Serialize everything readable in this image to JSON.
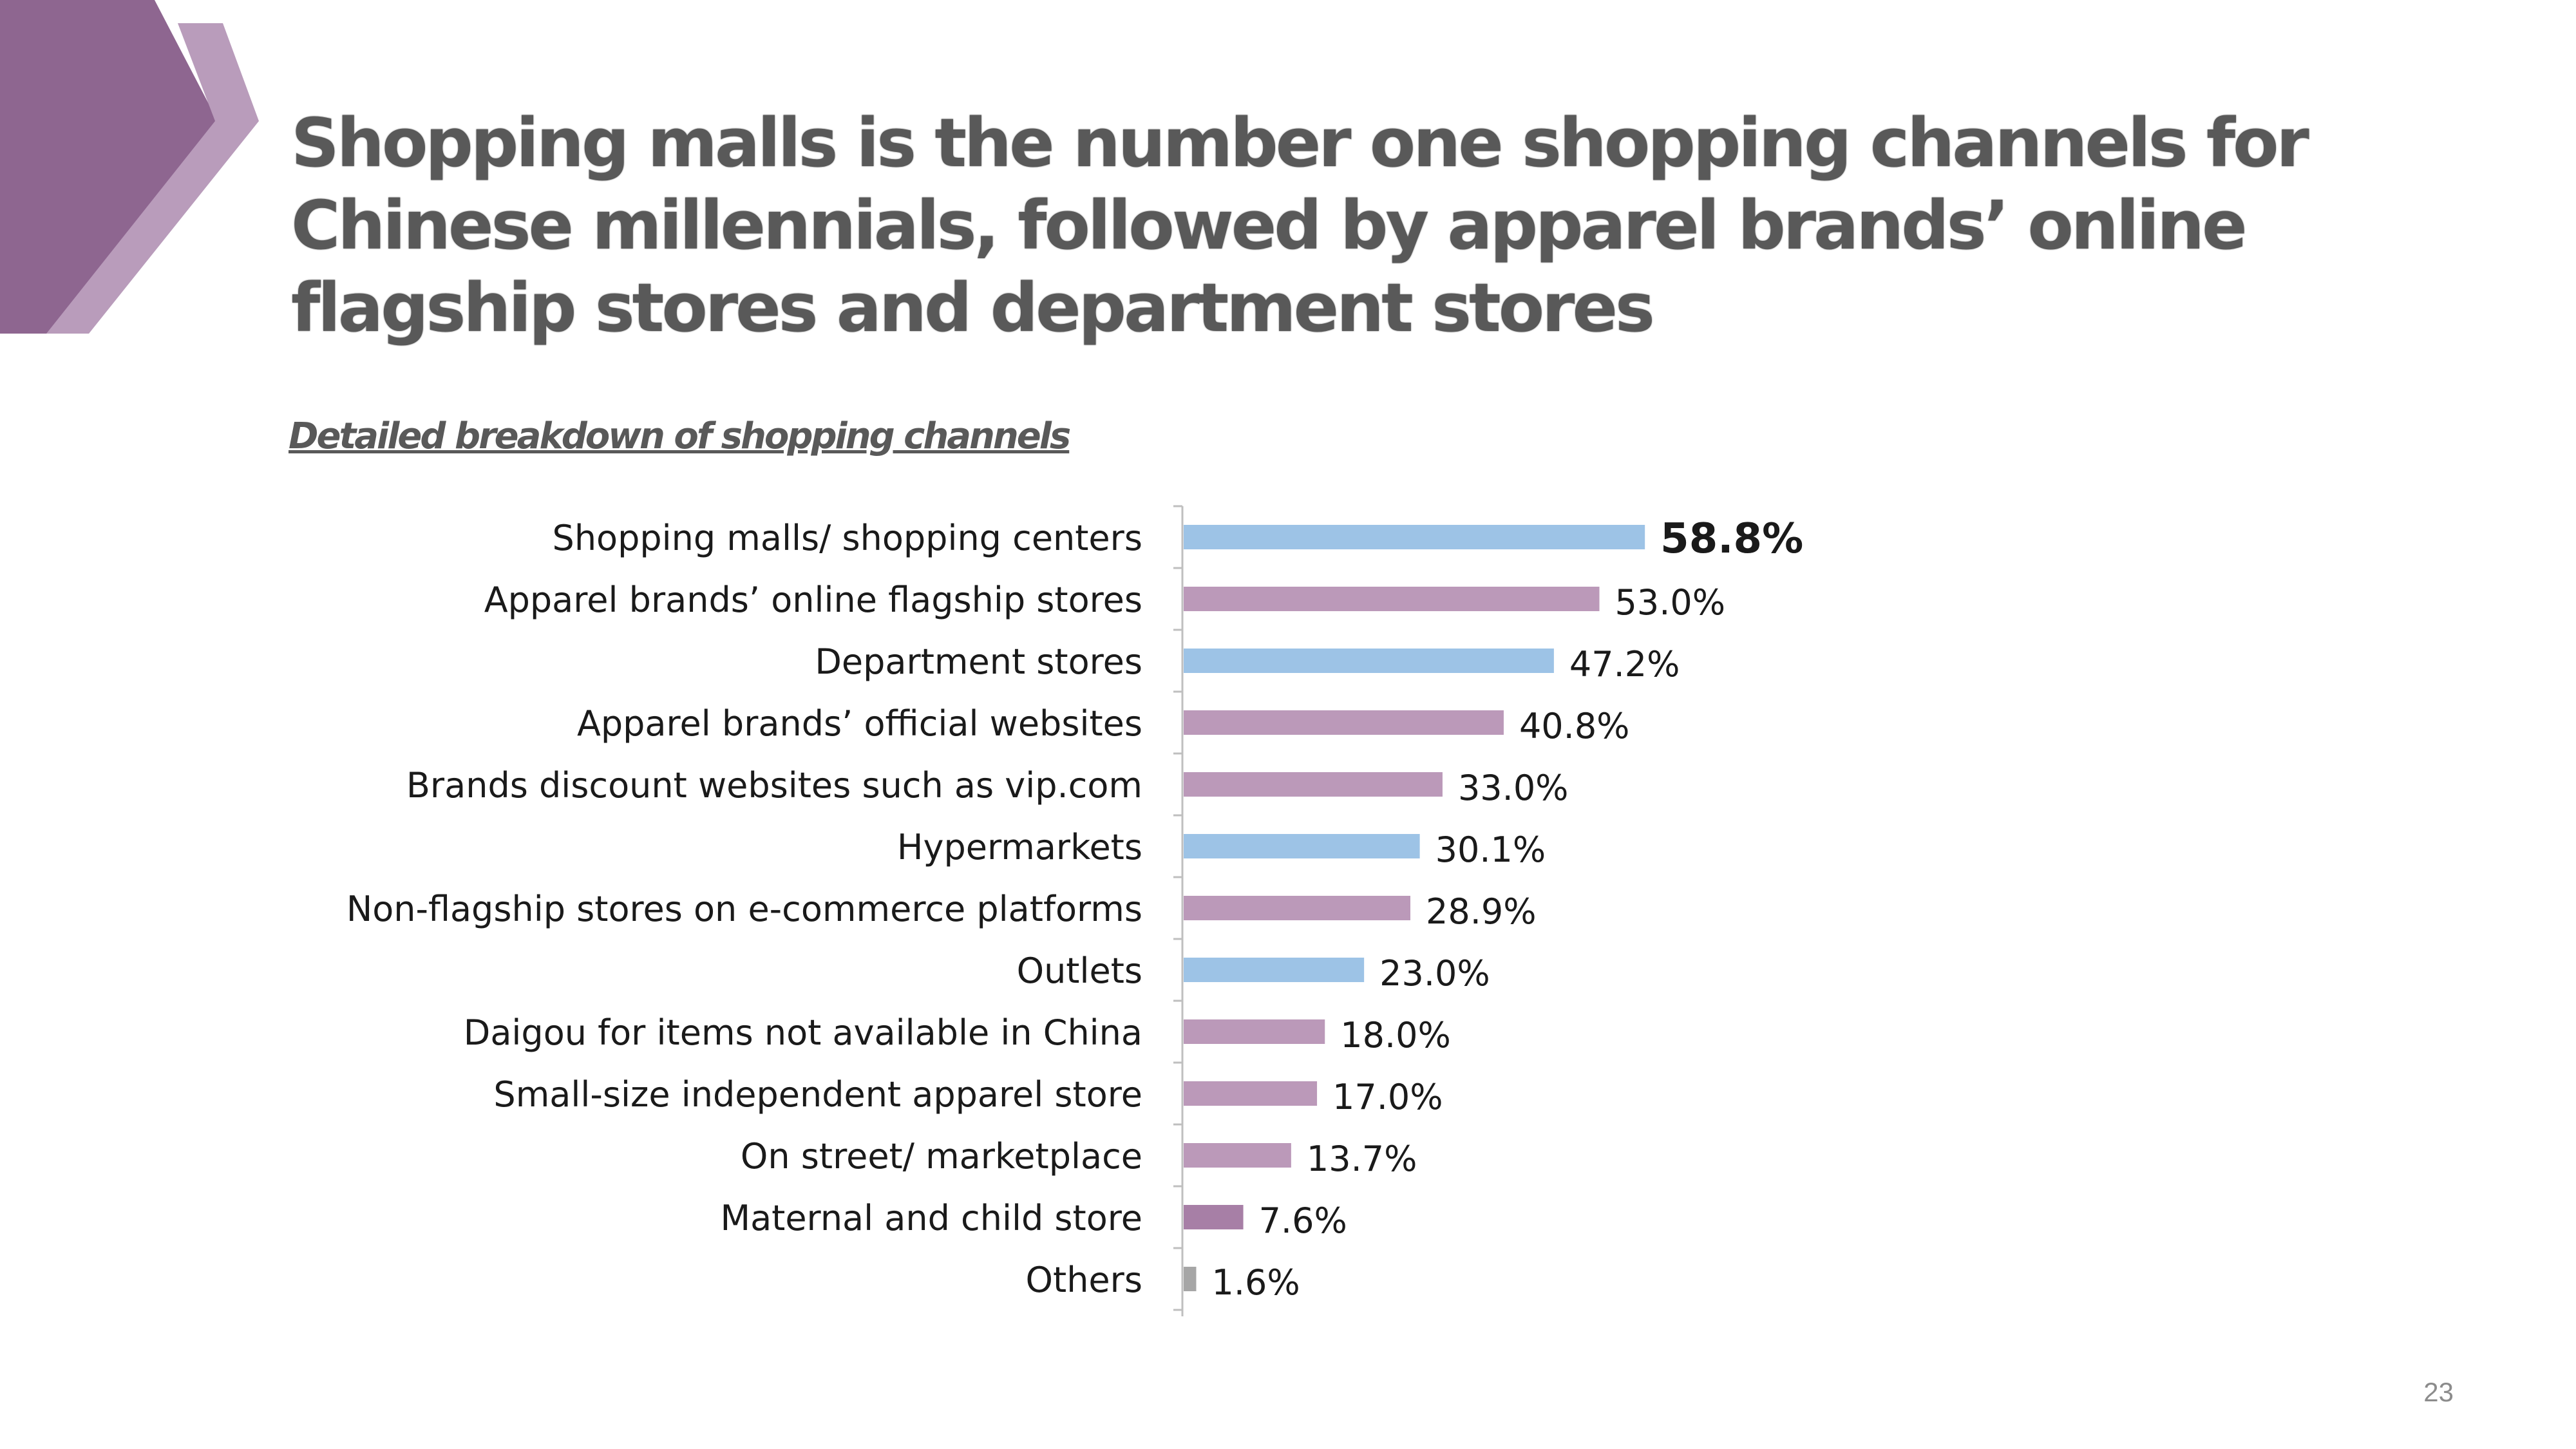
{
  "slide": {
    "title": "Shopping malls is the number one shopping channels for Chinese millennials, followed by apparel brands’ online flagship stores and department stores",
    "subtitle": "Detailed breakdown of shopping channels",
    "page_number": "23"
  },
  "colors": {
    "deco_dark": "#8e6690",
    "deco_light": "#b99cbb",
    "title_text": "#595959",
    "blue": "#9dc3e6",
    "lilac": "#bb99b9",
    "purple": "#a77fa6",
    "gray": "#a6a6a6"
  },
  "chart_data": {
    "type": "bar",
    "orientation": "horizontal",
    "categories": [
      "Shopping malls/ shopping centers",
      "Apparel brands’ online flagship stores",
      "Department stores",
      "Apparel brands’ official websites",
      "Brands discount websites such as vip.com",
      "Hypermarkets",
      "Non-flagship stores on e-commerce platforms",
      "Outlets",
      "Daigou for items not available in China",
      "Small-size independent apparel store ",
      "On street/ marketplace",
      "Maternal and child store",
      "Others"
    ],
    "values": [
      58.8,
      53.0,
      47.2,
      40.8,
      33.0,
      30.1,
      28.9,
      23.0,
      18.0,
      17.0,
      13.7,
      7.6,
      1.6
    ],
    "data_labels": [
      "58.8%",
      "53.0%",
      "47.2%",
      "40.8%",
      "33.0%",
      "30.1%",
      "28.9%",
      "23.0%",
      "18.0%",
      "17.0%",
      "13.7%",
      "7.6%",
      "1.6%"
    ],
    "bar_colors": [
      "#9dc3e6",
      "#bb99b9",
      "#9dc3e6",
      "#bb99b9",
      "#bb99b9",
      "#9dc3e6",
      "#bb99b9",
      "#9dc3e6",
      "#bb99b9",
      "#bb99b9",
      "#bb99b9",
      "#a77fa6",
      "#a6a6a6"
    ],
    "highlight_index": 0,
    "xlim": [
      0,
      100
    ],
    "grid": false,
    "legend": "none",
    "unit": "%"
  }
}
